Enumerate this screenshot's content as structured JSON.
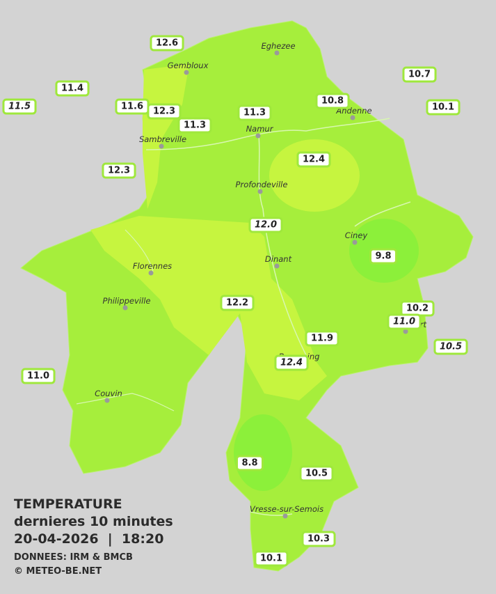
{
  "legend": {
    "title": "TEMPERATURE",
    "subtitle": "dernieres 10 minutes",
    "datetime": "20-04-2026  |  18:20",
    "source": "DONNEES: IRM & BMCB",
    "copyright": "© METEO-BE.NET"
  },
  "cities": [
    {
      "name": "Eghezee"
    },
    {
      "name": "Gembloux"
    },
    {
      "name": "Andenne"
    },
    {
      "name": "Namur"
    },
    {
      "name": "Sambreville"
    },
    {
      "name": "Profondeville"
    },
    {
      "name": "Ciney"
    },
    {
      "name": "Dinant"
    },
    {
      "name": "Florennes"
    },
    {
      "name": "Philippeville"
    },
    {
      "name": "Rochefort"
    },
    {
      "name": "Beauraing"
    },
    {
      "name": "Couvin"
    },
    {
      "name": "Vresse-sur-Semois"
    }
  ],
  "stations": [
    {
      "value": "12.6",
      "italic": false
    },
    {
      "value": "11.4",
      "italic": false
    },
    {
      "value": "11.5",
      "italic": true
    },
    {
      "value": "11.6",
      "italic": false
    },
    {
      "value": "12.3",
      "italic": false
    },
    {
      "value": "11.3",
      "italic": false
    },
    {
      "value": "11.3",
      "italic": false
    },
    {
      "value": "10.8",
      "italic": false
    },
    {
      "value": "10.7",
      "italic": false
    },
    {
      "value": "10.1",
      "italic": false
    },
    {
      "value": "12.3",
      "italic": false
    },
    {
      "value": "12.4",
      "italic": false
    },
    {
      "value": "12.0",
      "italic": true
    },
    {
      "value": "9.8",
      "italic": false
    },
    {
      "value": "12.2",
      "italic": false
    },
    {
      "value": "10.2",
      "italic": false
    },
    {
      "value": "11.0",
      "italic": true
    },
    {
      "value": "10.5",
      "italic": true
    },
    {
      "value": "11.9",
      "italic": false
    },
    {
      "value": "12.4",
      "italic": true
    },
    {
      "value": "11.0",
      "italic": false
    },
    {
      "value": "8.8",
      "italic": false
    },
    {
      "value": "10.5",
      "italic": false
    },
    {
      "value": "10.3",
      "italic": false
    },
    {
      "value": "10.1",
      "italic": false
    }
  ]
}
